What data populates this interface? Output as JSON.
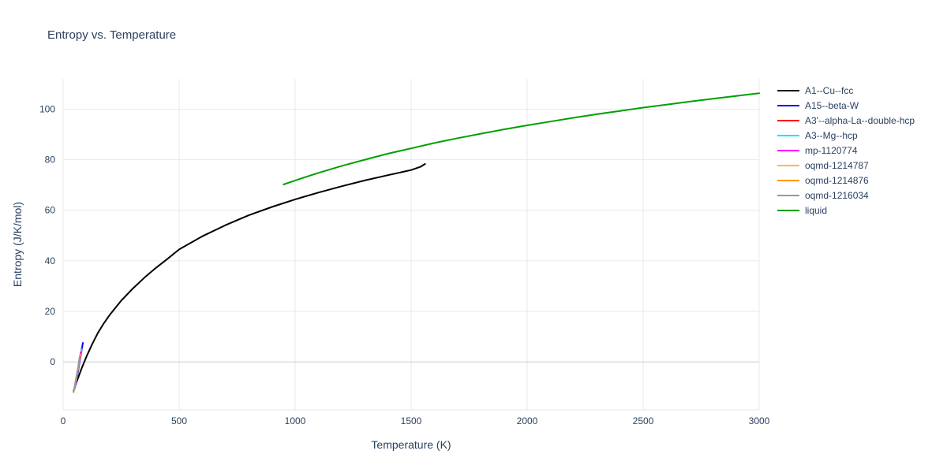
{
  "style": {
    "grid_color": "#e9e9e9",
    "zero_line_color": "#cfcfcf",
    "axis_line_color": "#e9e9e9",
    "tick_color": "#2a3f5f",
    "title_color": "#2a3f5f",
    "background": "#ffffff"
  },
  "chart_data": {
    "type": "line",
    "title": "Entropy vs. Temperature",
    "xlabel": "Temperature (K)",
    "ylabel": "Entropy (J/K/mol)",
    "xlim": [
      0,
      3000
    ],
    "ylim": [
      -19,
      112
    ],
    "xticks": [
      0,
      500,
      1000,
      1500,
      2000,
      2500,
      3000
    ],
    "yticks": [
      0,
      20,
      40,
      60,
      80,
      100
    ],
    "grid": true,
    "legend_position": "top-right",
    "series": [
      {
        "name": "A1--Cu--fcc",
        "color": "#000000",
        "x": [
          45,
          60,
          80,
          100,
          125,
          150,
          175,
          200,
          250,
          300,
          350,
          400,
          450,
          500,
          600,
          700,
          800,
          900,
          1000,
          1100,
          1200,
          1300,
          1400,
          1500,
          1540,
          1560
        ],
        "y": [
          -11.5,
          -7.5,
          -2.5,
          2.0,
          7.0,
          11.5,
          15.2,
          18.5,
          24.2,
          29.0,
          33.3,
          37.2,
          40.8,
          44.5,
          49.7,
          54.1,
          58.0,
          61.3,
          64.3,
          67.0,
          69.5,
          71.8,
          73.9,
          75.9,
          77.2,
          78.3
        ]
      },
      {
        "name": "A15--beta-W",
        "color": "#0000ff",
        "x": [
          55,
          65,
          75,
          85
        ],
        "y": [
          -9.0,
          -3.5,
          2.0,
          7.5
        ]
      },
      {
        "name": "A3'--alpha-La--double-hcp",
        "color": "#ff0000",
        "x": [
          52,
          62,
          72,
          80
        ],
        "y": [
          -10.0,
          -4.5,
          1.0,
          5.5
        ]
      },
      {
        "name": "A3--Mg--hcp",
        "color": "#00e5ff",
        "x": [
          51,
          61,
          71,
          79
        ],
        "y": [
          -10.3,
          -5.0,
          0.5,
          5.0
        ]
      },
      {
        "name": "mp-1120774",
        "color": "#ff00ff",
        "x": [
          49,
          59,
          69,
          76
        ],
        "y": [
          -10.8,
          -5.5,
          -0.5,
          3.8
        ]
      },
      {
        "name": "oqmd-1214787",
        "color": "#ffb74d",
        "x": [
          47,
          57,
          67,
          73
        ],
        "y": [
          -11.2,
          -6.0,
          -1.0,
          3.0
        ]
      },
      {
        "name": "oqmd-1214876",
        "color": "#ff9800",
        "x": [
          46,
          56,
          66,
          72
        ],
        "y": [
          -11.6,
          -6.4,
          -1.4,
          2.6
        ]
      },
      {
        "name": "oqmd-1216034",
        "color": "#999999",
        "x": [
          45,
          55,
          65,
          70
        ],
        "y": [
          -12.0,
          -7.0,
          -2.0,
          1.5
        ]
      },
      {
        "name": "liquid",
        "color": "#00a000",
        "x": [
          950,
          1000,
          1100,
          1200,
          1300,
          1400,
          1500,
          1600,
          1700,
          1800,
          1900,
          2000,
          2100,
          2200,
          2300,
          2400,
          2500,
          2600,
          2700,
          2800,
          2900,
          3000
        ],
        "y": [
          70.2,
          71.8,
          74.8,
          77.5,
          80.0,
          82.4,
          84.5,
          86.6,
          88.5,
          90.3,
          92.0,
          93.6,
          95.1,
          96.6,
          98.0,
          99.3,
          100.6,
          101.8,
          103.0,
          104.1,
          105.2,
          106.3
        ]
      }
    ]
  }
}
